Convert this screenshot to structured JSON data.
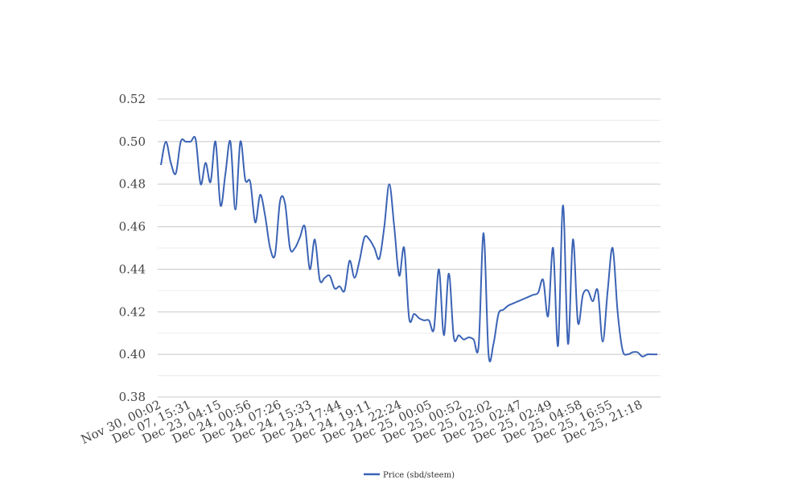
{
  "chart_data": {
    "type": "line",
    "title": "",
    "xlabel": "",
    "ylabel": "",
    "ylim": [
      0.38,
      0.52
    ],
    "y_ticks": [
      "0.38",
      "0.40",
      "0.42",
      "0.44",
      "0.46",
      "0.48",
      "0.50",
      "0.52"
    ],
    "y_tick_values": [
      0.38,
      0.4,
      0.42,
      0.44,
      0.46,
      0.48,
      0.5,
      0.52
    ],
    "x_tick_labels": [
      "Nov 30, 00:02",
      "Dec 07, 15:31",
      "Dec 23, 04:15",
      "Dec 24, 00:56",
      "Dec 24, 07:26",
      "Dec 24, 15:33",
      "Dec 24, 17:44",
      "Dec 24, 19:11",
      "Dec 24, 22:24",
      "Dec 25, 00:05",
      "Dec 25, 00:52",
      "Dec 25, 02:02",
      "Dec 25, 02:47",
      "Dec 25, 02:49",
      "Dec 25, 04:58",
      "Dec 25, 16:55",
      "Dec 25, 21:18"
    ],
    "grid": true,
    "minor_grid": true,
    "legend_position": "bottom",
    "series": [
      {
        "name": "Price (sbd/steem)",
        "color": "#3b63b5",
        "values": [
          0.489,
          0.5,
          0.49,
          0.485,
          0.5,
          0.5,
          0.5,
          0.501,
          0.48,
          0.49,
          0.481,
          0.5,
          0.47,
          0.485,
          0.5,
          0.468,
          0.5,
          0.482,
          0.481,
          0.462,
          0.475,
          0.465,
          0.45,
          0.447,
          0.472,
          0.471,
          0.45,
          0.45,
          0.455,
          0.46,
          0.44,
          0.454,
          0.435,
          0.436,
          0.437,
          0.431,
          0.432,
          0.43,
          0.444,
          0.436,
          0.444,
          0.455,
          0.454,
          0.45,
          0.445,
          0.46,
          0.48,
          0.46,
          0.437,
          0.45,
          0.417,
          0.419,
          0.417,
          0.416,
          0.416,
          0.412,
          0.44,
          0.409,
          0.438,
          0.408,
          0.409,
          0.407,
          0.408,
          0.407,
          0.404,
          0.457,
          0.4,
          0.405,
          0.419,
          0.421,
          0.423,
          0.424,
          0.425,
          0.426,
          0.427,
          0.428,
          0.429,
          0.435,
          0.418,
          0.45,
          0.404,
          0.47,
          0.405,
          0.454,
          0.415,
          0.428,
          0.43,
          0.425,
          0.43,
          0.406,
          0.43,
          0.45,
          0.42,
          0.402,
          0.4,
          0.401,
          0.401,
          0.399,
          0.4,
          0.4,
          0.4
        ]
      }
    ]
  }
}
